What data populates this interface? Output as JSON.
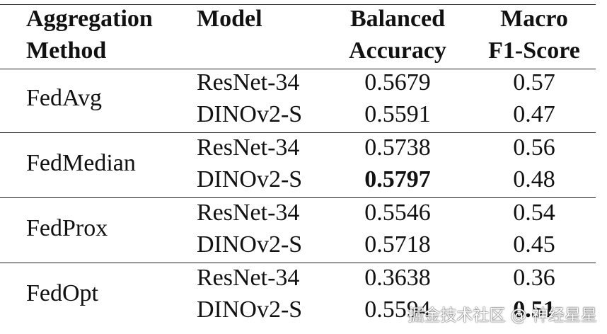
{
  "table": {
    "header": [
      [
        "Aggregation",
        "Method"
      ],
      [
        "Model"
      ],
      [
        "Balanced",
        "Accuracy"
      ],
      [
        "Macro",
        "F1-Score"
      ]
    ],
    "groups": [
      {
        "method": "FedAvg",
        "rows": [
          {
            "model": "ResNet-34",
            "balanced_accuracy": 0.5679,
            "macro_f1": 0.57
          },
          {
            "model": "DINOv2-S",
            "balanced_accuracy": 0.5591,
            "macro_f1": 0.47
          }
        ]
      },
      {
        "method": "FedMedian",
        "rows": [
          {
            "model": "ResNet-34",
            "balanced_accuracy": 0.5738,
            "macro_f1": 0.56
          },
          {
            "model": "DINOv2-S",
            "balanced_accuracy": 0.5797,
            "macro_f1": 0.48,
            "bold": [
              "balanced_accuracy"
            ]
          }
        ]
      },
      {
        "method": "FedProx",
        "rows": [
          {
            "model": "ResNet-34",
            "balanced_accuracy": 0.5546,
            "macro_f1": 0.54
          },
          {
            "model": "DINOv2-S",
            "balanced_accuracy": 0.5718,
            "macro_f1": 0.45
          }
        ]
      },
      {
        "method": "FedOpt",
        "rows": [
          {
            "model": "ResNet-34",
            "balanced_accuracy": 0.3638,
            "macro_f1": 0.36
          },
          {
            "model": "DINOv2-S",
            "balanced_accuracy": 0.5594,
            "macro_f1": 0.51,
            "bold": [
              "macro_f1"
            ]
          }
        ]
      }
    ]
  },
  "watermark": "掘金技术社区 @ 神经星星"
}
